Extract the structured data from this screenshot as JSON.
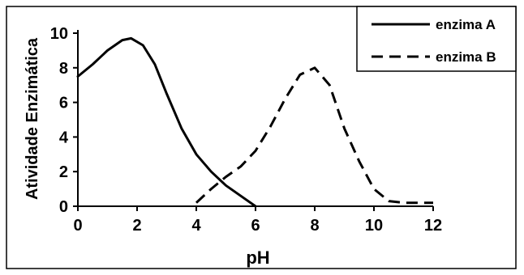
{
  "chart_data": {
    "type": "line",
    "title": "",
    "xlabel": "pH",
    "ylabel": "Atividade Enzimática",
    "xlim": [
      0,
      12
    ],
    "ylim": [
      0,
      10
    ],
    "x_ticks": [
      "0",
      "2",
      "4",
      "6",
      "8",
      "10",
      "12"
    ],
    "y_ticks": [
      "0",
      "2",
      "4",
      "6",
      "8",
      "10"
    ],
    "grid": false,
    "legend_position": "top-right",
    "series": [
      {
        "name": "enzima A",
        "line_style": "solid",
        "color": "#000000",
        "points": [
          [
            0,
            7.5
          ],
          [
            0.5,
            8.2
          ],
          [
            1,
            9.0
          ],
          [
            1.5,
            9.6
          ],
          [
            1.8,
            9.7
          ],
          [
            2.2,
            9.3
          ],
          [
            2.6,
            8.2
          ],
          [
            3,
            6.5
          ],
          [
            3.5,
            4.5
          ],
          [
            4,
            3.0
          ],
          [
            4.5,
            2.0
          ],
          [
            5,
            1.2
          ],
          [
            5.5,
            0.6
          ],
          [
            6,
            0
          ]
        ]
      },
      {
        "name": "enzima B",
        "line_style": "dashed",
        "color": "#000000",
        "points": [
          [
            4,
            0.2
          ],
          [
            4.5,
            1.0
          ],
          [
            5,
            1.7
          ],
          [
            5.5,
            2.3
          ],
          [
            6,
            3.2
          ],
          [
            6.5,
            4.6
          ],
          [
            7,
            6.2
          ],
          [
            7.5,
            7.6
          ],
          [
            8,
            8.0
          ],
          [
            8.5,
            7.0
          ],
          [
            9,
            4.5
          ],
          [
            9.5,
            2.6
          ],
          [
            10,
            1.0
          ],
          [
            10.5,
            0.3
          ],
          [
            11,
            0.2
          ],
          [
            12,
            0.2
          ]
        ]
      }
    ]
  }
}
